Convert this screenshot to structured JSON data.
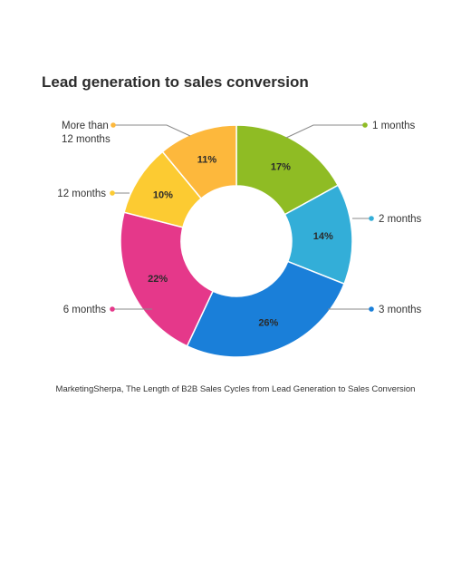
{
  "chart_data": {
    "type": "pie",
    "title": "Lead generation to sales conversion",
    "categories": [
      "1 months",
      "2 months",
      "3 months",
      "6 months",
      "12 months",
      "More than 12 months"
    ],
    "label_lines": [
      [
        "1 months"
      ],
      [
        "2 months"
      ],
      [
        "3 months"
      ],
      [
        "6 months"
      ],
      [
        "12 months"
      ],
      [
        "More than",
        "12 months"
      ]
    ],
    "values": [
      17,
      14,
      26,
      22,
      10,
      11
    ],
    "value_labels": [
      "17%",
      "14%",
      "26%",
      "22%",
      "10%",
      "11%"
    ],
    "colors": [
      "#8fbc24",
      "#33aed8",
      "#1a7fd9",
      "#e5388a",
      "#fccb32",
      "#fdb83c"
    ],
    "legend": "none"
  },
  "source": "MarketingSherpa, The Length of B2B Sales Cycles from Lead Generation to Sales Conversion"
}
